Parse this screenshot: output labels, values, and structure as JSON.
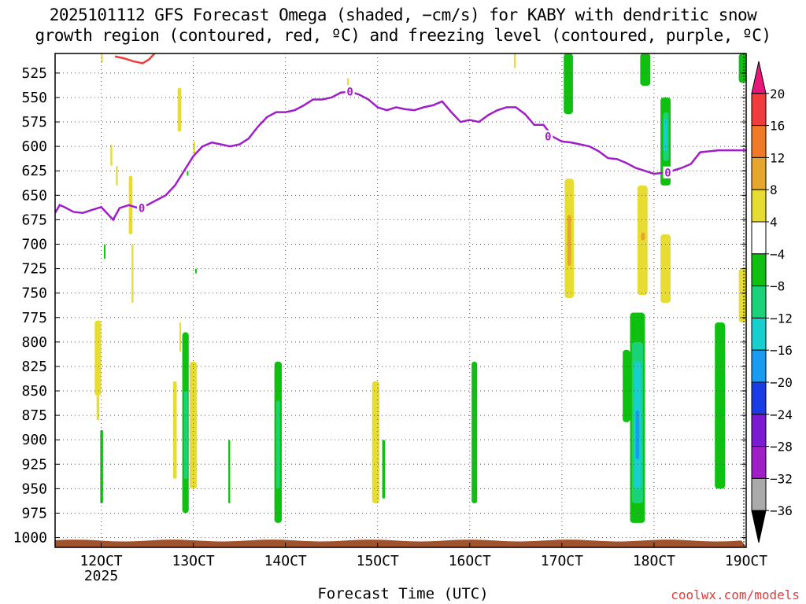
{
  "title": {
    "line1": "2025101112 GFS Forecast Omega (shaded, −cm/s) for KABY with dendritic snow",
    "line2": "growth region (contoured, red, ºC) and freezing level (contoured, purple, ºC)"
  },
  "xlabel": "Forecast Time (UTC)",
  "credit": "coolwx.com/models",
  "chart_data": {
    "type": "heatmap",
    "title": "2025101112 GFS Forecast Omega (shaded, −cm/s) for KABY with dendritic snow growth region (contoured, red, ºC) and freezing level (contoured, purple, ºC)",
    "xlabel": "Forecast Time (UTC)",
    "x_ticks": [
      {
        "day": 12,
        "label": "12OCT",
        "sublabel": "2025"
      },
      {
        "day": 13,
        "label": "13OCT"
      },
      {
        "day": 14,
        "label": "14OCT"
      },
      {
        "day": 15,
        "label": "15OCT"
      },
      {
        "day": 16,
        "label": "16OCT"
      },
      {
        "day": 17,
        "label": "17OCT"
      },
      {
        "day": 18,
        "label": "18OCT"
      },
      {
        "day": 19,
        "label": "19OCT"
      }
    ],
    "xlim": [
      11.5,
      19.0
    ],
    "y_ticks": [
      "525",
      "550",
      "575",
      "600",
      "625",
      "650",
      "675",
      "700",
      "725",
      "750",
      "775",
      "800",
      "825",
      "850",
      "875",
      "900",
      "925",
      "950",
      "975",
      "1000"
    ],
    "ylim": [
      505,
      1010
    ],
    "grid": true,
    "colorbar": {
      "labels": [
        "20",
        "16",
        "12",
        "8",
        "4",
        "−4",
        "−8",
        "−12",
        "−16",
        "−20",
        "−24",
        "−28",
        "−32",
        "−36"
      ],
      "colors": [
        "#e8177a",
        "#f03c3c",
        "#f07a26",
        "#e6a62e",
        "#e6dc32",
        "#ffffff",
        "#10c010",
        "#1ad27a",
        "#17cfcf",
        "#1a9af0",
        "#1a3ce6",
        "#7a1ad2",
        "#a01ec8",
        "#aaaaaa",
        "#000000"
      ]
    },
    "freezing_level": {
      "label": "0",
      "color": "#a01ec8",
      "x": [
        11.5,
        11.55,
        11.6,
        11.7,
        11.8,
        11.9,
        12.0,
        12.08,
        12.13,
        12.2,
        12.3,
        12.4,
        12.5,
        12.6,
        12.7,
        12.8,
        12.9,
        13.0,
        13.1,
        13.2,
        13.3,
        13.4,
        13.5,
        13.6,
        13.7,
        13.8,
        13.9,
        14.0,
        14.1,
        14.2,
        14.3,
        14.4,
        14.5,
        14.6,
        14.7,
        14.8,
        14.9,
        15.0,
        15.1,
        15.2,
        15.3,
        15.4,
        15.5,
        15.6,
        15.7,
        15.8,
        15.9,
        16.0,
        16.1,
        16.2,
        16.3,
        16.4,
        16.5,
        16.6,
        16.7,
        16.8,
        16.9,
        17.0,
        17.1,
        17.2,
        17.3,
        17.4,
        17.5,
        17.6,
        17.7,
        17.8,
        17.9,
        18.0,
        18.1,
        18.2,
        18.3,
        18.4,
        18.5,
        18.6,
        18.7,
        18.8,
        18.9,
        19.0
      ],
      "y": [
        668,
        660,
        662,
        667,
        668,
        665,
        662,
        670,
        675,
        663,
        660,
        663,
        660,
        655,
        650,
        640,
        625,
        610,
        600,
        596,
        598,
        600,
        598,
        592,
        580,
        570,
        565,
        565,
        563,
        558,
        552,
        552,
        550,
        545,
        544,
        547,
        552,
        560,
        563,
        560,
        562,
        563,
        560,
        558,
        554,
        565,
        575,
        573,
        575,
        568,
        563,
        560,
        560,
        567,
        578,
        578,
        590,
        595,
        596,
        598,
        600,
        605,
        612,
        613,
        617,
        622,
        625,
        628,
        627,
        625,
        622,
        618,
        606,
        605,
        604,
        604,
        604,
        604
      ]
    },
    "dgz_contour": {
      "color": "#f03c3c",
      "x": [
        12.15,
        12.25,
        12.35,
        12.45,
        12.52,
        12.58
      ],
      "y": [
        508,
        510,
        513,
        515,
        511,
        505
      ]
    },
    "omega_cells": [
      {
        "x0": 12.0,
        "x1": 12.0,
        "p0": 505,
        "p1": 515,
        "value": 4
      },
      {
        "x0": 12.83,
        "x1": 12.87,
        "p0": 540,
        "p1": 585,
        "value": 4
      },
      {
        "x0": 13.0,
        "x1": 13.02,
        "p0": 595,
        "p1": 608,
        "value": 4
      },
      {
        "x0": 12.1,
        "x1": 12.12,
        "p0": 598,
        "p1": 620,
        "value": 4
      },
      {
        "x0": 12.16,
        "x1": 12.18,
        "p0": 620,
        "p1": 640,
        "value": 4
      },
      {
        "x0": 12.3,
        "x1": 12.34,
        "p0": 630,
        "p1": 690,
        "value": 4
      },
      {
        "x0": 12.33,
        "x1": 12.35,
        "p0": 700,
        "p1": 760,
        "value": 4
      },
      {
        "x0": 12.03,
        "x1": 12.04,
        "p0": 700,
        "p1": 715,
        "value": -4
      },
      {
        "x0": 12.93,
        "x1": 12.94,
        "p0": 625,
        "p1": 630,
        "value": -4
      },
      {
        "x0": 13.02,
        "x1": 13.03,
        "p0": 725,
        "p1": 730,
        "value": -4
      },
      {
        "x0": 14.67,
        "x1": 14.68,
        "p0": 530,
        "p1": 548,
        "value": 4
      },
      {
        "x0": 16.48,
        "x1": 16.5,
        "p0": 505,
        "p1": 520,
        "value": 4
      },
      {
        "x0": 11.93,
        "x1": 12.0,
        "p0": 778,
        "p1": 855,
        "value": 4
      },
      {
        "x0": 11.95,
        "x1": 11.98,
        "p0": 855,
        "p1": 880,
        "value": 4
      },
      {
        "x0": 11.99,
        "x1": 12.02,
        "p0": 890,
        "p1": 965,
        "value": -4
      },
      {
        "x0": 12.78,
        "x1": 12.82,
        "p0": 840,
        "p1": 940,
        "value": 4
      },
      {
        "x0": 12.88,
        "x1": 12.95,
        "p0": 790,
        "p1": 975,
        "value": -4
      },
      {
        "x0": 12.9,
        "x1": 12.94,
        "p0": 850,
        "p1": 940,
        "value": -8
      },
      {
        "x0": 12.96,
        "x1": 13.04,
        "p0": 820,
        "p1": 950,
        "value": 4
      },
      {
        "x0": 12.85,
        "x1": 12.86,
        "p0": 780,
        "p1": 810,
        "value": 4
      },
      {
        "x0": 13.38,
        "x1": 13.4,
        "p0": 900,
        "p1": 965,
        "value": -4
      },
      {
        "x0": 13.88,
        "x1": 13.96,
        "p0": 820,
        "p1": 985,
        "value": -4
      },
      {
        "x0": 13.9,
        "x1": 13.94,
        "p0": 860,
        "p1": 950,
        "value": -8
      },
      {
        "x0": 14.94,
        "x1": 15.02,
        "p0": 840,
        "p1": 965,
        "value": 4
      },
      {
        "x0": 15.05,
        "x1": 15.08,
        "p0": 900,
        "p1": 960,
        "value": -4
      },
      {
        "x0": 16.02,
        "x1": 16.08,
        "p0": 820,
        "p1": 965,
        "value": -4
      },
      {
        "x0": 17.02,
        "x1": 17.12,
        "p0": 505,
        "p1": 567,
        "value": -4
      },
      {
        "x0": 17.03,
        "x1": 17.13,
        "p0": 633,
        "p1": 755,
        "value": 4
      },
      {
        "x0": 17.06,
        "x1": 17.1,
        "p0": 670,
        "p1": 722,
        "value": 8
      },
      {
        "x0": 17.85,
        "x1": 17.96,
        "p0": 505,
        "p1": 538,
        "value": -4
      },
      {
        "x0": 18.07,
        "x1": 18.18,
        "p0": 550,
        "p1": 640,
        "value": -4
      },
      {
        "x0": 18.1,
        "x1": 18.16,
        "p0": 565,
        "p1": 615,
        "value": -8
      },
      {
        "x0": 18.1,
        "x1": 18.14,
        "p0": 572,
        "p1": 605,
        "value": -12
      },
      {
        "x0": 17.82,
        "x1": 17.93,
        "p0": 640,
        "p1": 752,
        "value": 4
      },
      {
        "x0": 17.86,
        "x1": 17.9,
        "p0": 688,
        "p1": 696,
        "value": 8
      },
      {
        "x0": 18.07,
        "x1": 18.18,
        "p0": 690,
        "p1": 760,
        "value": 4
      },
      {
        "x0": 17.66,
        "x1": 17.74,
        "p0": 808,
        "p1": 882,
        "value": -4
      },
      {
        "x0": 17.74,
        "x1": 17.9,
        "p0": 770,
        "p1": 985,
        "value": -4
      },
      {
        "x0": 17.76,
        "x1": 17.88,
        "p0": 800,
        "p1": 965,
        "value": -8
      },
      {
        "x0": 17.78,
        "x1": 17.86,
        "p0": 820,
        "p1": 950,
        "value": -12
      },
      {
        "x0": 17.8,
        "x1": 17.84,
        "p0": 870,
        "p1": 920,
        "value": -16
      },
      {
        "x0": 18.92,
        "x1": 19.0,
        "p0": 505,
        "p1": 535,
        "value": -4
      },
      {
        "x0": 18.92,
        "x1": 19.0,
        "p0": 725,
        "p1": 780,
        "value": 4
      },
      {
        "x0": 18.66,
        "x1": 18.77,
        "p0": 780,
        "p1": 950,
        "value": -4
      }
    ],
    "terrain_color": "#a0522d"
  }
}
